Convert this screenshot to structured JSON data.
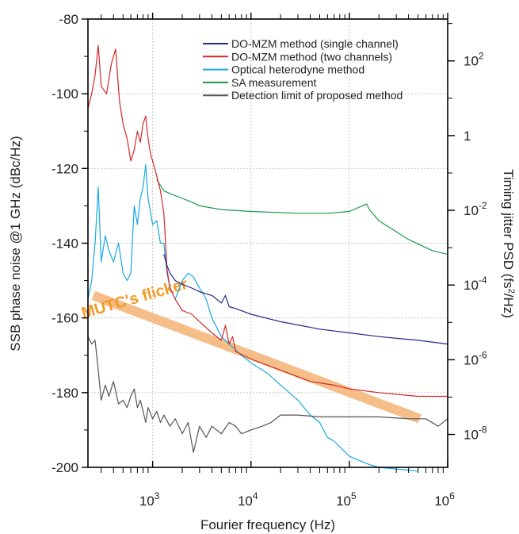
{
  "chart_data": {
    "type": "line",
    "title": "",
    "xlabel": "Fourier frequency (Hz)",
    "ylabel": "SSB phase noise @1 GHz (dBc/Hz)",
    "y2label": "Timing jitter PSD (fs²/Hz)",
    "x_scale": "log",
    "xlim": [
      220,
      1000000
    ],
    "ylim": [
      -200,
      -80
    ],
    "y2lim_log10": [
      -8.88,
      3.12
    ],
    "grid": true,
    "legend_position": "top-right",
    "x_ticks": [
      {
        "value": 1000,
        "mant": "10",
        "exp": "3"
      },
      {
        "value": 10000,
        "mant": "10",
        "exp": "4"
      },
      {
        "value": 100000,
        "mant": "10",
        "exp": "5"
      },
      {
        "value": 1000000,
        "mant": "10",
        "exp": "6"
      }
    ],
    "y_ticks": [
      {
        "value": -80,
        "label": "-80"
      },
      {
        "value": -100,
        "label": "-100"
      },
      {
        "value": -120,
        "label": "-120"
      },
      {
        "value": -140,
        "label": "-140"
      },
      {
        "value": -160,
        "label": "-160"
      },
      {
        "value": -180,
        "label": "-180"
      },
      {
        "value": -200,
        "label": "-200"
      }
    ],
    "y2_ticks": [
      {
        "log10": 2,
        "mant": "10",
        "exp": "2"
      },
      {
        "log10": 0,
        "mant": "1",
        "exp": ""
      },
      {
        "log10": -2,
        "mant": "10",
        "exp": "-2"
      },
      {
        "log10": -4,
        "mant": "10",
        "exp": "-4"
      },
      {
        "log10": -6,
        "mant": "10",
        "exp": "-6"
      },
      {
        "log10": -8,
        "mant": "10",
        "exp": "-8"
      }
    ],
    "series": [
      {
        "name": "DO-MZM method (single channel)",
        "color": "#1f2a86",
        "points": [
          [
            1300,
            -143
          ],
          [
            1400,
            -146
          ],
          [
            1500,
            -148
          ],
          [
            1700,
            -150
          ],
          [
            2000,
            -151
          ],
          [
            2500,
            -152
          ],
          [
            3000,
            -153
          ],
          [
            4000,
            -154
          ],
          [
            5000,
            -156
          ],
          [
            5500,
            -154
          ],
          [
            6000,
            -157
          ],
          [
            7000,
            -157.5
          ],
          [
            10000,
            -159
          ],
          [
            20000,
            -161
          ],
          [
            50000,
            -163
          ],
          [
            100000,
            -164
          ],
          [
            200000,
            -165
          ],
          [
            500000,
            -166
          ],
          [
            1000000,
            -167
          ]
        ]
      },
      {
        "name": "DO-MZM method (two channels)",
        "color": "#d62728",
        "points": [
          [
            220,
            -104
          ],
          [
            240,
            -100
          ],
          [
            260,
            -95
          ],
          [
            280,
            -87
          ],
          [
            300,
            -98
          ],
          [
            340,
            -100
          ],
          [
            380,
            -92
          ],
          [
            420,
            -88
          ],
          [
            460,
            -102
          ],
          [
            500,
            -108
          ],
          [
            550,
            -112
          ],
          [
            600,
            -118
          ],
          [
            650,
            -115
          ],
          [
            700,
            -110
          ],
          [
            750,
            -113
          ],
          [
            800,
            -108
          ],
          [
            850,
            -106
          ],
          [
            900,
            -112
          ],
          [
            950,
            -116
          ],
          [
            1000,
            -118
          ],
          [
            1100,
            -122
          ],
          [
            1200,
            -126
          ],
          [
            1300,
            -132
          ],
          [
            1400,
            -147
          ],
          [
            1500,
            -152
          ],
          [
            1700,
            -155
          ],
          [
            2000,
            -158
          ],
          [
            2500,
            -159
          ],
          [
            3000,
            -161
          ],
          [
            4000,
            -164
          ],
          [
            5000,
            -166
          ],
          [
            5500,
            -162
          ],
          [
            6000,
            -167
          ],
          [
            6500,
            -165
          ],
          [
            7000,
            -169
          ],
          [
            10000,
            -171
          ],
          [
            20000,
            -174
          ],
          [
            40000,
            -177
          ],
          [
            70000,
            -178
          ],
          [
            100000,
            -179
          ],
          [
            200000,
            -180
          ],
          [
            500000,
            -181
          ],
          [
            1000000,
            -181
          ]
        ]
      },
      {
        "name": "Optical heterodyne method",
        "color": "#17a9e1",
        "points": [
          [
            220,
            -155
          ],
          [
            240,
            -150
          ],
          [
            260,
            -140
          ],
          [
            280,
            -125
          ],
          [
            300,
            -145
          ],
          [
            330,
            -138
          ],
          [
            360,
            -142
          ],
          [
            400,
            -145
          ],
          [
            450,
            -140
          ],
          [
            500,
            -148
          ],
          [
            550,
            -150
          ],
          [
            600,
            -148
          ],
          [
            650,
            -130
          ],
          [
            700,
            -135
          ],
          [
            750,
            -128
          ],
          [
            800,
            -125
          ],
          [
            850,
            -119
          ],
          [
            900,
            -128
          ],
          [
            1000,
            -135
          ],
          [
            1100,
            -134
          ],
          [
            1200,
            -140
          ],
          [
            1300,
            -140
          ],
          [
            1400,
            -148
          ],
          [
            1500,
            -152
          ],
          [
            1700,
            -155
          ],
          [
            2000,
            -150
          ],
          [
            2300,
            -148
          ],
          [
            2600,
            -149
          ],
          [
            3000,
            -152
          ],
          [
            3500,
            -155
          ],
          [
            4000,
            -160
          ],
          [
            5000,
            -165
          ],
          [
            6000,
            -167
          ],
          [
            8000,
            -170
          ],
          [
            10000,
            -172
          ],
          [
            15000,
            -175
          ],
          [
            20000,
            -178
          ],
          [
            30000,
            -182
          ],
          [
            40000,
            -186
          ],
          [
            50000,
            -188
          ],
          [
            60000,
            -192
          ],
          [
            70000,
            -193
          ],
          [
            100000,
            -197
          ],
          [
            150000,
            -199
          ],
          [
            200000,
            -200
          ],
          [
            500000,
            -201
          ]
        ]
      },
      {
        "name": "SA measurement",
        "color": "#1a9a4a",
        "points": [
          [
            1100,
            -123
          ],
          [
            1300,
            -126
          ],
          [
            1600,
            -127
          ],
          [
            2000,
            -128
          ],
          [
            2500,
            -129
          ],
          [
            3000,
            -130
          ],
          [
            5000,
            -131
          ],
          [
            10000,
            -131.5
          ],
          [
            30000,
            -132
          ],
          [
            60000,
            -132
          ],
          [
            100000,
            -131.5
          ],
          [
            150000,
            -129.5
          ],
          [
            160000,
            -131
          ],
          [
            200000,
            -134
          ],
          [
            400000,
            -139
          ],
          [
            700000,
            -142
          ],
          [
            1000000,
            -143
          ]
        ]
      },
      {
        "name": "Detection limit of proposed method",
        "color": "#555555",
        "points": [
          [
            220,
            -165
          ],
          [
            240,
            -167
          ],
          [
            260,
            -166
          ],
          [
            280,
            -174
          ],
          [
            300,
            -182
          ],
          [
            330,
            -178
          ],
          [
            360,
            -181
          ],
          [
            400,
            -177
          ],
          [
            450,
            -183
          ],
          [
            500,
            -182
          ],
          [
            550,
            -184
          ],
          [
            600,
            -181
          ],
          [
            650,
            -179
          ],
          [
            700,
            -184
          ],
          [
            750,
            -182
          ],
          [
            800,
            -185
          ],
          [
            850,
            -188
          ],
          [
            900,
            -184
          ],
          [
            1000,
            -187
          ],
          [
            1100,
            -185
          ],
          [
            1200,
            -188
          ],
          [
            1300,
            -186
          ],
          [
            1500,
            -189
          ],
          [
            1700,
            -187
          ],
          [
            2000,
            -191
          ],
          [
            2300,
            -188
          ],
          [
            2600,
            -196
          ],
          [
            3000,
            -189
          ],
          [
            3500,
            -192
          ],
          [
            4000,
            -189
          ],
          [
            5000,
            -191
          ],
          [
            6000,
            -188
          ],
          [
            7000,
            -189
          ],
          [
            8000,
            -191
          ],
          [
            10000,
            -190
          ],
          [
            13000,
            -189
          ],
          [
            16000,
            -188
          ],
          [
            20000,
            -186
          ],
          [
            30000,
            -186
          ],
          [
            50000,
            -186.5
          ],
          [
            100000,
            -186.5
          ],
          [
            200000,
            -186.5
          ],
          [
            400000,
            -187
          ],
          [
            600000,
            -187
          ],
          [
            800000,
            -189
          ],
          [
            1000000,
            -187
          ]
        ]
      }
    ],
    "annotation": {
      "text": "MUTC's flicker",
      "color": "#f5be88",
      "line": [
        [
          250,
          -154
        ],
        [
          520000,
          -187
        ]
      ],
      "label_anchor": [
        500,
        -161
      ],
      "label_rotate": -16
    }
  }
}
